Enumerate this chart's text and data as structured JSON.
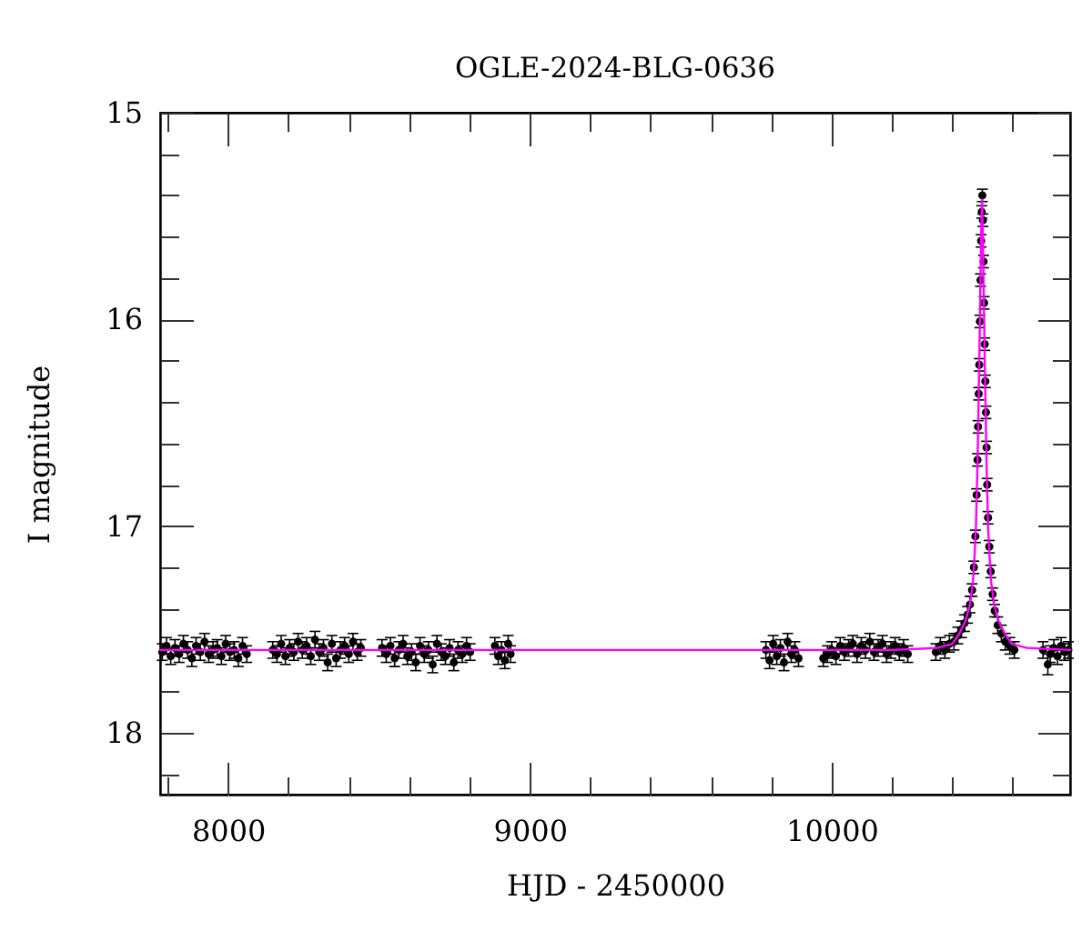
{
  "chart_data": {
    "type": "scatter",
    "title": "OGLE-2024-BLG-0636",
    "xlabel": "HJD - 2450000",
    "ylabel": "I magnitude",
    "xlim": [
      7775,
      10790
    ],
    "ylim": [
      18.3,
      15
    ],
    "xticks": [
      {
        "value": 7800,
        "label": null
      },
      8000,
      {
        "value": 8200,
        "label": null
      },
      {
        "value": 8400,
        "label": null
      },
      {
        "value": 8600,
        "label": null
      },
      {
        "value": 8800,
        "label": null
      },
      9000,
      {
        "value": 9200,
        "label": null
      },
      {
        "value": 9400,
        "label": null
      },
      {
        "value": 9600,
        "label": null
      },
      {
        "value": 9800,
        "label": null
      },
      10000,
      {
        "value": 10200,
        "label": null
      },
      {
        "value": 10400,
        "label": null
      },
      {
        "value": 10600,
        "label": null
      }
    ],
    "yticks": [
      15,
      {
        "value": 15.2,
        "label": null
      },
      {
        "value": 15.4,
        "label": null
      },
      {
        "value": 15.6,
        "label": null
      },
      {
        "value": 15.8,
        "label": null
      },
      16,
      {
        "value": 16.2,
        "label": null
      },
      {
        "value": 16.4,
        "label": null
      },
      {
        "value": 16.6,
        "label": null
      },
      {
        "value": 16.8,
        "label": null
      },
      17,
      {
        "value": 17.2,
        "label": null
      },
      {
        "value": 17.4,
        "label": null
      },
      {
        "value": 17.6,
        "label": null
      },
      {
        "value": 17.8,
        "label": null
      },
      18,
      {
        "value": 18.2,
        "label": null
      }
    ],
    "series": [
      {
        "color": "#000000",
        "marker": "circle",
        "x": [
          7782,
          7796,
          7810,
          7824,
          7838,
          7852,
          7866,
          7880,
          7894,
          7908,
          7922,
          7936,
          7950,
          7964,
          7978,
          7992,
          8006,
          8020,
          8034,
          8048,
          8062,
          8148,
          8162,
          8176,
          8190,
          8204,
          8218,
          8232,
          8246,
          8260,
          8274,
          8288,
          8302,
          8316,
          8330,
          8344,
          8358,
          8372,
          8386,
          8400,
          8414,
          8428,
          8440,
          8510,
          8524,
          8538,
          8552,
          8566,
          8580,
          8594,
          8608,
          8622,
          8636,
          8650,
          8664,
          8678,
          8692,
          8706,
          8720,
          8734,
          8748,
          8762,
          8776,
          8790,
          8802,
          8884,
          8895,
          8906,
          8917,
          8928,
          8936,
          9782,
          9794,
          9806,
          9818,
          9830,
          9842,
          9854,
          9866,
          9878,
          9890,
          9972,
          9986,
          10000,
          10014,
          10028,
          10042,
          10056,
          10070,
          10084,
          10098,
          10112,
          10126,
          10140,
          10154,
          10168,
          10182,
          10196,
          10210,
          10224,
          10238,
          10252,
          10345,
          10360,
          10375,
          10390,
          10405,
          10418,
          10430,
          10440,
          10450,
          10458,
          10465,
          10471,
          10476,
          10480,
          10483,
          10485,
          10487,
          10489,
          10491,
          10493,
          10495,
          10497,
          10499,
          10501,
          10503,
          10505,
          10507,
          10509,
          10511,
          10513,
          10515,
          10518,
          10522,
          10527,
          10533,
          10540,
          10550,
          10562,
          10575,
          10590,
          10605,
          10700,
          10716,
          10724,
          10736,
          10748,
          10760,
          10772,
          10784
        ],
        "values": [
          17.61,
          17.58,
          17.63,
          17.59,
          17.62,
          17.57,
          17.6,
          17.64,
          17.58,
          17.61,
          17.56,
          17.62,
          17.6,
          17.59,
          17.63,
          17.57,
          17.61,
          17.6,
          17.64,
          17.58,
          17.62,
          17.6,
          17.62,
          17.57,
          17.63,
          17.59,
          17.61,
          17.56,
          17.6,
          17.58,
          17.63,
          17.55,
          17.61,
          17.59,
          17.66,
          17.57,
          17.64,
          17.6,
          17.58,
          17.62,
          17.56,
          17.61,
          17.59,
          17.59,
          17.62,
          17.58,
          17.64,
          17.6,
          17.57,
          17.63,
          17.61,
          17.66,
          17.58,
          17.62,
          17.6,
          17.67,
          17.57,
          17.61,
          17.63,
          17.59,
          17.66,
          17.6,
          17.62,
          17.58,
          17.61,
          17.58,
          17.63,
          17.6,
          17.65,
          17.57,
          17.62,
          17.6,
          17.65,
          17.57,
          17.63,
          17.59,
          17.66,
          17.56,
          17.62,
          17.6,
          17.64,
          17.64,
          17.62,
          17.6,
          17.63,
          17.58,
          17.61,
          17.59,
          17.57,
          17.62,
          17.58,
          17.6,
          17.56,
          17.61,
          17.59,
          17.57,
          17.62,
          17.6,
          17.58,
          17.61,
          17.59,
          17.62,
          17.61,
          17.58,
          17.6,
          17.57,
          17.56,
          17.53,
          17.5,
          17.47,
          17.43,
          17.38,
          17.31,
          17.2,
          17.05,
          16.85,
          16.68,
          16.52,
          16.36,
          16.22,
          16.01,
          15.81,
          15.62,
          15.48,
          15.4,
          15.52,
          15.72,
          15.92,
          16.12,
          16.3,
          16.45,
          16.62,
          16.8,
          16.96,
          17.1,
          17.22,
          17.33,
          17.41,
          17.48,
          17.52,
          17.56,
          17.58,
          17.6,
          17.6,
          17.67,
          17.62,
          17.59,
          17.63,
          17.58,
          17.61,
          17.6
        ],
        "errors": [
          0.04,
          0.04,
          0.04,
          0.04,
          0.04,
          0.04,
          0.04,
          0.04,
          0.04,
          0.04,
          0.04,
          0.04,
          0.04,
          0.04,
          0.04,
          0.04,
          0.04,
          0.04,
          0.04,
          0.04,
          0.04,
          0.04,
          0.04,
          0.04,
          0.04,
          0.04,
          0.04,
          0.04,
          0.04,
          0.04,
          0.04,
          0.04,
          0.04,
          0.04,
          0.04,
          0.04,
          0.04,
          0.04,
          0.04,
          0.04,
          0.04,
          0.04,
          0.04,
          0.04,
          0.04,
          0.04,
          0.04,
          0.04,
          0.04,
          0.04,
          0.04,
          0.04,
          0.04,
          0.04,
          0.04,
          0.04,
          0.04,
          0.04,
          0.04,
          0.04,
          0.04,
          0.04,
          0.04,
          0.04,
          0.04,
          0.04,
          0.04,
          0.04,
          0.04,
          0.04,
          0.04,
          0.04,
          0.04,
          0.04,
          0.04,
          0.04,
          0.04,
          0.04,
          0.04,
          0.04,
          0.04,
          0.04,
          0.04,
          0.04,
          0.04,
          0.04,
          0.04,
          0.04,
          0.04,
          0.04,
          0.04,
          0.04,
          0.04,
          0.04,
          0.04,
          0.04,
          0.04,
          0.04,
          0.04,
          0.04,
          0.04,
          0.04,
          0.04,
          0.04,
          0.04,
          0.04,
          0.04,
          0.04,
          0.04,
          0.04,
          0.04,
          0.04,
          0.03,
          0.03,
          0.03,
          0.03,
          0.03,
          0.03,
          0.03,
          0.03,
          0.03,
          0.03,
          0.03,
          0.03,
          0.03,
          0.03,
          0.03,
          0.03,
          0.03,
          0.03,
          0.03,
          0.03,
          0.03,
          0.03,
          0.03,
          0.03,
          0.03,
          0.03,
          0.04,
          0.04,
          0.04,
          0.04,
          0.04,
          0.04,
          0.05,
          0.04,
          0.04,
          0.04,
          0.04,
          0.04,
          0.04
        ]
      },
      {
        "type": "line",
        "color": "#ff00ff",
        "x": [
          7775,
          10200,
          10350,
          10400,
          10423,
          10443,
          10458,
          10468,
          10473,
          10478,
          10483,
          10486,
          10489,
          10492,
          10495,
          10498,
          10501,
          10504,
          10507,
          10510,
          10513,
          10518,
          10523,
          10528,
          10538,
          10553,
          10573,
          10596,
          10646,
          10790
        ],
        "values": [
          17.6,
          17.6,
          17.59,
          17.57,
          17.52,
          17.46,
          17.38,
          17.27,
          17.15,
          17.0,
          16.7,
          16.45,
          16.2,
          15.9,
          15.6,
          15.42,
          15.6,
          15.9,
          16.2,
          16.45,
          16.7,
          17.0,
          17.15,
          17.27,
          17.38,
          17.46,
          17.52,
          17.57,
          17.59,
          17.6
        ]
      }
    ]
  }
}
